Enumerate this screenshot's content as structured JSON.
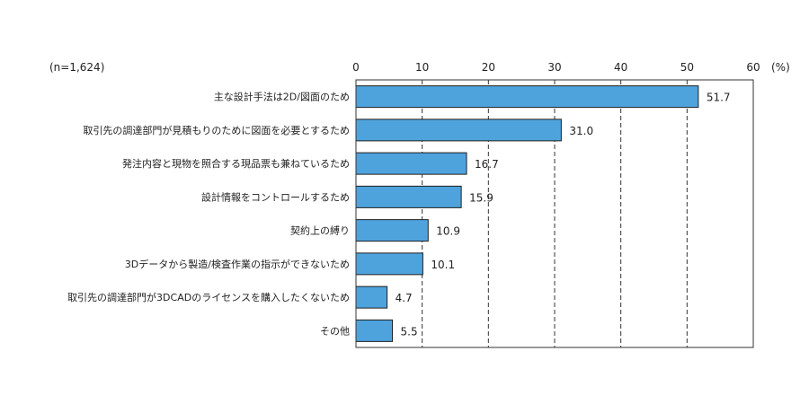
{
  "chart_data": {
    "type": "bar",
    "orientation": "horizontal",
    "sample_note": "(n=1,624)",
    "unit_label": "(%)",
    "xlim": [
      0,
      60
    ],
    "xticks": [
      0,
      10,
      20,
      30,
      40,
      50,
      60
    ],
    "grid": "vertical-dashed",
    "bar_color": "#4fa3dd",
    "categories": [
      "主な設計手法は2D/図面のため",
      "取引先の調達部門が見積もりのために図面を必要とするため",
      "発注内容と現物を照合する現品票も兼ねているため",
      "設計情報をコントロールするため",
      "契約上の縛り",
      "3Dデータから製造/検査作業の指示ができないため",
      "取引先の調達部門が3DCADのライセンスを購入したくないため",
      "その他"
    ],
    "values": [
      51.7,
      31.0,
      16.7,
      15.9,
      10.9,
      10.1,
      4.7,
      5.5
    ],
    "value_labels": [
      "51.7",
      "31.0",
      "16.7",
      "15.9",
      "10.9",
      "10.1",
      "4.7",
      "5.5"
    ]
  }
}
